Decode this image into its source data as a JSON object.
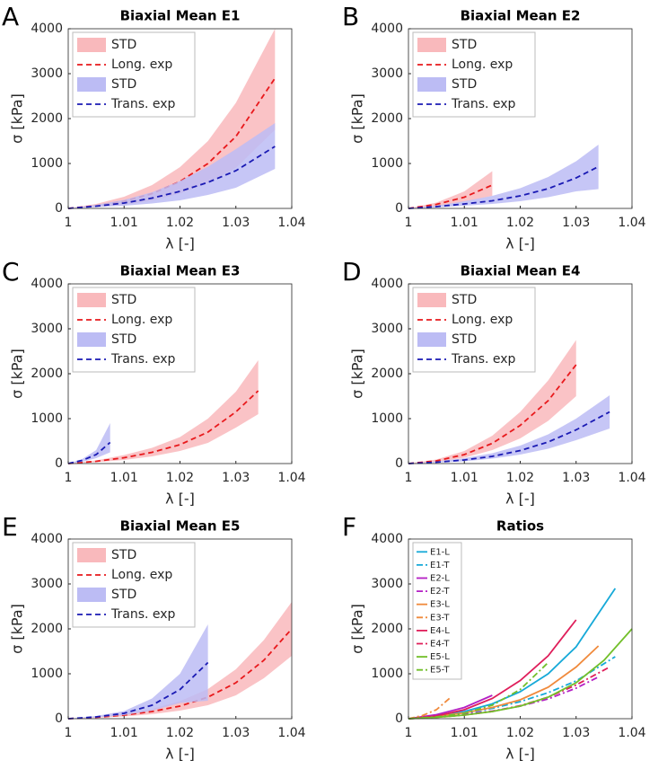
{
  "chart_data": [
    {
      "type": "line",
      "panel": "A",
      "title": "Biaxial Mean E1",
      "xlabel": "λ [-]",
      "ylabel": "σ [kPa]",
      "xlim": [
        1,
        1.04
      ],
      "xticks": [
        1,
        1.01,
        1.02,
        1.03,
        1.04
      ],
      "ylim": [
        0,
        4000
      ],
      "yticks": [
        0,
        1000,
        2000,
        3000,
        4000
      ],
      "legend": "upper left",
      "series": [
        {
          "name": "STD",
          "color": "#f9b9bc",
          "x": [
            1,
            1.005,
            1.01,
            1.015,
            1.02,
            1.025,
            1.03,
            1.037
          ],
          "lower": [
            0,
            30,
            80,
            170,
            330,
            560,
            900,
            1750
          ],
          "upper": [
            0,
            100,
            260,
            520,
            920,
            1500,
            2350,
            4000
          ]
        },
        {
          "name": "Long. exp",
          "color": "#e8191c",
          "style": "dashed",
          "x": [
            1,
            1.005,
            1.01,
            1.015,
            1.02,
            1.025,
            1.03,
            1.037
          ],
          "values": [
            0,
            60,
            160,
            330,
            600,
            1000,
            1600,
            2900
          ]
        },
        {
          "name": "STD",
          "color": "#bcbcf4",
          "x": [
            1,
            1.005,
            1.01,
            1.015,
            1.02,
            1.025,
            1.03,
            1.037
          ],
          "lower": [
            0,
            30,
            60,
            110,
            180,
            300,
            460,
            880
          ],
          "upper": [
            0,
            80,
            190,
            360,
            610,
            930,
            1320,
            1900
          ]
        },
        {
          "name": "Trans. exp",
          "color": "#1a1ab4",
          "style": "dashed",
          "x": [
            1,
            1.005,
            1.01,
            1.015,
            1.02,
            1.025,
            1.03,
            1.037
          ],
          "values": [
            0,
            50,
            120,
            230,
            380,
            580,
            840,
            1380
          ]
        }
      ]
    },
    {
      "type": "line",
      "panel": "B",
      "title": "Biaxial Mean E2",
      "xlabel": "λ [-]",
      "ylabel": "σ [kPa]",
      "xlim": [
        1,
        1.04
      ],
      "xticks": [
        1,
        1.01,
        1.02,
        1.03,
        1.04
      ],
      "ylim": [
        0,
        4000
      ],
      "yticks": [
        0,
        1000,
        2000,
        3000,
        4000
      ],
      "legend": "upper left",
      "series": [
        {
          "name": "STD",
          "color": "#f9b9bc",
          "x": [
            1,
            1.005,
            1.01,
            1.015
          ],
          "lower": [
            0,
            50,
            150,
            280
          ],
          "upper": [
            0,
            130,
            380,
            830
          ]
        },
        {
          "name": "Long. exp",
          "color": "#e8191c",
          "style": "dashed",
          "x": [
            1,
            1.005,
            1.01,
            1.015
          ],
          "values": [
            0,
            90,
            250,
            520
          ]
        },
        {
          "name": "STD",
          "color": "#bcbcf4",
          "x": [
            1,
            1.005,
            1.01,
            1.015,
            1.02,
            1.025,
            1.03,
            1.034
          ],
          "lower": [
            0,
            20,
            60,
            100,
            160,
            250,
            380,
            430
          ],
          "upper": [
            0,
            60,
            160,
            280,
            450,
            700,
            1050,
            1420
          ]
        },
        {
          "name": "Trans. exp",
          "color": "#1a1ab4",
          "style": "dashed",
          "x": [
            1,
            1.005,
            1.01,
            1.015,
            1.02,
            1.025,
            1.03,
            1.034
          ],
          "values": [
            0,
            40,
            100,
            170,
            280,
            440,
            680,
            930
          ]
        }
      ]
    },
    {
      "type": "line",
      "panel": "C",
      "title": "Biaxial Mean E3",
      "xlabel": "λ [-]",
      "ylabel": "σ [kPa]",
      "xlim": [
        1,
        1.04
      ],
      "xticks": [
        1,
        1.01,
        1.02,
        1.03,
        1.04
      ],
      "ylim": [
        0,
        4000
      ],
      "yticks": [
        0,
        1000,
        2000,
        3000,
        4000
      ],
      "legend": "upper left",
      "series": [
        {
          "name": "STD",
          "color": "#f9b9bc",
          "x": [
            1,
            1.005,
            1.01,
            1.015,
            1.02,
            1.025,
            1.03,
            1.034
          ],
          "lower": [
            0,
            30,
            80,
            160,
            280,
            460,
            800,
            1100
          ],
          "upper": [
            0,
            70,
            190,
            350,
            590,
            1000,
            1600,
            2300
          ]
        },
        {
          "name": "Long. exp",
          "color": "#e8191c",
          "style": "dashed",
          "x": [
            1,
            1.005,
            1.01,
            1.015,
            1.02,
            1.025,
            1.03,
            1.034
          ],
          "values": [
            0,
            50,
            130,
            250,
            420,
            700,
            1150,
            1620
          ]
        },
        {
          "name": "STD",
          "color": "#bcbcf4",
          "x": [
            1,
            1.0025,
            1.005,
            1.0075
          ],
          "lower": [
            0,
            40,
            120,
            250
          ],
          "upper": [
            0,
            100,
            300,
            900
          ]
        },
        {
          "name": "Trans. exp",
          "color": "#1a1ab4",
          "style": "dashed",
          "x": [
            1,
            1.0025,
            1.005,
            1.0075
          ],
          "values": [
            0,
            70,
            200,
            470
          ]
        }
      ]
    },
    {
      "type": "line",
      "panel": "D",
      "title": "Biaxial Mean E4",
      "xlabel": "λ [-]",
      "ylabel": "σ [kPa]",
      "xlim": [
        1,
        1.04
      ],
      "xticks": [
        1,
        1.01,
        1.02,
        1.03,
        1.04
      ],
      "ylim": [
        0,
        4000
      ],
      "yticks": [
        0,
        1000,
        2000,
        3000,
        4000
      ],
      "legend": "upper left",
      "series": [
        {
          "name": "STD",
          "color": "#f9b9bc",
          "x": [
            1,
            1.005,
            1.01,
            1.015,
            1.02,
            1.025,
            1.03
          ],
          "lower": [
            0,
            40,
            130,
            300,
            560,
            950,
            1500
          ],
          "upper": [
            0,
            90,
            280,
            620,
            1150,
            1850,
            2750
          ]
        },
        {
          "name": "Long. exp",
          "color": "#e8191c",
          "style": "dashed",
          "x": [
            1,
            1.005,
            1.01,
            1.015,
            1.02,
            1.025,
            1.03
          ],
          "values": [
            0,
            60,
            200,
            450,
            850,
            1400,
            2200
          ]
        },
        {
          "name": "STD",
          "color": "#bcbcf4",
          "x": [
            1,
            1.005,
            1.01,
            1.015,
            1.02,
            1.025,
            1.03,
            1.036
          ],
          "lower": [
            0,
            20,
            50,
            110,
            200,
            330,
            520,
            780
          ],
          "upper": [
            0,
            45,
            120,
            230,
            400,
            650,
            1000,
            1520
          ]
        },
        {
          "name": "Trans. exp",
          "color": "#1a1ab4",
          "style": "dashed",
          "x": [
            1,
            1.005,
            1.01,
            1.015,
            1.02,
            1.025,
            1.03,
            1.036
          ],
          "values": [
            0,
            30,
            80,
            160,
            290,
            480,
            750,
            1150
          ]
        }
      ]
    },
    {
      "type": "line",
      "panel": "E",
      "title": "Biaxial Mean E5",
      "xlabel": "λ [-]",
      "ylabel": "σ [kPa]",
      "xlim": [
        1,
        1.04
      ],
      "xticks": [
        1,
        1.01,
        1.02,
        1.03,
        1.04
      ],
      "ylim": [
        0,
        4000
      ],
      "yticks": [
        0,
        1000,
        2000,
        3000,
        4000
      ],
      "legend": "upper left",
      "series": [
        {
          "name": "STD",
          "color": "#f9b9bc",
          "x": [
            1,
            1.005,
            1.01,
            1.015,
            1.02,
            1.025,
            1.03,
            1.035,
            1.04
          ],
          "lower": [
            0,
            20,
            50,
            100,
            180,
            300,
            520,
            900,
            1400
          ],
          "upper": [
            0,
            40,
            110,
            220,
            390,
            660,
            1100,
            1750,
            2600
          ]
        },
        {
          "name": "Long. exp",
          "color": "#e8191c",
          "style": "dashed",
          "x": [
            1,
            1.005,
            1.01,
            1.015,
            1.02,
            1.025,
            1.03,
            1.035,
            1.04
          ],
          "values": [
            0,
            30,
            80,
            160,
            280,
            480,
            800,
            1300,
            2000
          ]
        },
        {
          "name": "STD",
          "color": "#bcbcf4",
          "x": [
            1,
            1.005,
            1.01,
            1.015,
            1.02,
            1.025
          ],
          "lower": [
            0,
            30,
            80,
            180,
            350,
            400
          ],
          "upper": [
            0,
            60,
            170,
            450,
            1000,
            2100
          ]
        },
        {
          "name": "Trans. exp",
          "color": "#1a1ab4",
          "style": "dashed",
          "x": [
            1,
            1.005,
            1.01,
            1.015,
            1.02,
            1.025
          ],
          "values": [
            0,
            40,
            120,
            300,
            650,
            1250
          ]
        }
      ]
    },
    {
      "type": "line",
      "panel": "F",
      "title": "Ratios",
      "xlabel": "λ [-]",
      "ylabel": "σ [kPa]",
      "xlim": [
        1,
        1.04
      ],
      "xticks": [
        1,
        1.01,
        1.02,
        1.03,
        1.04
      ],
      "ylim": [
        0,
        4000
      ],
      "yticks": [
        0,
        1000,
        2000,
        3000,
        4000
      ],
      "legend": "upper left",
      "series": [
        {
          "name": "E1-L",
          "color": "#16a9d8",
          "style": "solid",
          "x": [
            1,
            1.005,
            1.01,
            1.015,
            1.02,
            1.025,
            1.03,
            1.037
          ],
          "values": [
            0,
            60,
            160,
            330,
            600,
            1000,
            1600,
            2900
          ]
        },
        {
          "name": "E1-T",
          "color": "#16a9d8",
          "style": "dashdot",
          "x": [
            1,
            1.005,
            1.01,
            1.015,
            1.02,
            1.025,
            1.03,
            1.037
          ],
          "values": [
            0,
            50,
            120,
            230,
            380,
            580,
            840,
            1380
          ]
        },
        {
          "name": "E2-L",
          "color": "#b41fc4",
          "style": "solid",
          "x": [
            1,
            1.005,
            1.01,
            1.015
          ],
          "values": [
            0,
            90,
            250,
            520
          ]
        },
        {
          "name": "E2-T",
          "color": "#b41fc4",
          "style": "dashdot",
          "x": [
            1,
            1.005,
            1.01,
            1.015,
            1.02,
            1.025,
            1.03,
            1.034
          ],
          "values": [
            0,
            40,
            100,
            170,
            280,
            440,
            680,
            930
          ]
        },
        {
          "name": "E3-L",
          "color": "#f08a3c",
          "style": "solid",
          "x": [
            1,
            1.005,
            1.01,
            1.015,
            1.02,
            1.025,
            1.03,
            1.034
          ],
          "values": [
            0,
            50,
            130,
            250,
            420,
            700,
            1150,
            1620
          ]
        },
        {
          "name": "E3-T",
          "color": "#f08a3c",
          "style": "dashdot",
          "x": [
            1,
            1.0025,
            1.005,
            1.0075
          ],
          "values": [
            0,
            70,
            200,
            470
          ]
        },
        {
          "name": "E4-L",
          "color": "#df1e5a",
          "style": "solid",
          "x": [
            1,
            1.005,
            1.01,
            1.015,
            1.02,
            1.025,
            1.03
          ],
          "values": [
            0,
            60,
            200,
            450,
            850,
            1400,
            2200
          ]
        },
        {
          "name": "E4-T",
          "color": "#df1e5a",
          "style": "dashdot",
          "x": [
            1,
            1.005,
            1.01,
            1.015,
            1.02,
            1.025,
            1.03,
            1.036
          ],
          "values": [
            0,
            30,
            80,
            160,
            290,
            480,
            750,
            1150
          ]
        },
        {
          "name": "E5-L",
          "color": "#72bf2a",
          "style": "solid",
          "x": [
            1,
            1.005,
            1.01,
            1.015,
            1.02,
            1.025,
            1.03,
            1.035,
            1.04
          ],
          "values": [
            0,
            30,
            80,
            160,
            280,
            480,
            800,
            1300,
            2000
          ]
        },
        {
          "name": "E5-T",
          "color": "#72bf2a",
          "style": "dashdot",
          "x": [
            1,
            1.005,
            1.01,
            1.015,
            1.02,
            1.025
          ],
          "values": [
            0,
            40,
            120,
            300,
            650,
            1250
          ]
        }
      ]
    }
  ]
}
